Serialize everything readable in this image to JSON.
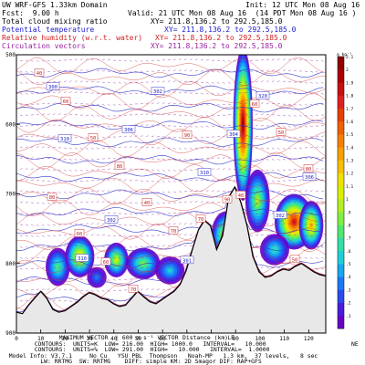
{
  "header": {
    "model_domain": "UW WRF-GFS 1.33km Domain",
    "fcst_label": "Fcst:",
    "fcst_value": "9.00 h",
    "init": "Init: 12 UTC Mon 08 Aug 16",
    "valid": "Valid: 21 UTC Mon 08 Aug 16  (14 PDT Mon 08 Aug 16 )",
    "fields": [
      {
        "name": "Total cloud mixing ratio",
        "xy": "XY= 211.8,136.2 to 292.5,185.0",
        "color": "#000000"
      },
      {
        "name": "Potential temperature",
        "xy": "XY= 211.8,136.2 to 292.5,185.0",
        "color": "#2020d0"
      },
      {
        "name": "Relative humidity (w.r.t. water)",
        "xy": "XY= 211.8,136.2 to 292.5,185.0",
        "color": "#d02020"
      },
      {
        "name": "Circulation vectors",
        "xy": "XY= 211.8,136.2 to 292.5,185.0",
        "color": "#9a20a0"
      }
    ]
  },
  "footer": {
    "lines": [
      "         MAXIMUM VECTOR  | 600 m s⁻¹ VECTOR |  Pa s⁻¹ SCALE",
      "  CONTOURS:  UNITS=K  LOW= 216.00  HIGH= 1000.0   INTERVAL=   10.000",
      "  CONTOURS:  UNITS=%  LOW= 291.00  HIGH=   10.000   INTERVAL=  1.0000",
      "  Model Info: V3.7.1     No Cu   YSU PBL  Thompson   Noah-MP   1.3 km,  37 levels,   8 sec",
      "           LW: RRTMG  SW: RRTMG    DIFF: simple KM: 2D Smagor DIF: RAP+GFS"
    ],
    "distance_label": "Distance (km)",
    "ne_label": "NE"
  },
  "colorbar": {
    "unit": "g kg⁻¹",
    "tick_labels": [
      ".1",
      ".2",
      ".3",
      ".4",
      ".5",
      ".6",
      ".7",
      ".8",
      ".9",
      "1",
      "1.1",
      "1.2",
      "1.3",
      "1.4",
      "1.5",
      "1.6",
      "1.7",
      "1.8",
      "1.9",
      "2",
      "2.1"
    ],
    "colors": [
      "#6a00c8",
      "#4a1ee0",
      "#2a4af0",
      "#1a78f8",
      "#18a8f0",
      "#20d0d8",
      "#30e0a8",
      "#50e870",
      "#80f040",
      "#b0f020",
      "#d8f000",
      "#f0e000",
      "#f8c000",
      "#f8a000",
      "#f88000",
      "#f06000",
      "#e84000",
      "#e02020",
      "#c81010",
      "#b00000",
      "#900000"
    ]
  },
  "chart_data": {
    "type": "heatmap",
    "title": "Total cloud mixing ratio",
    "xlabel": "Distance (km)",
    "ylabel": "",
    "x_ticks": [
      0,
      10,
      20,
      30,
      40,
      50,
      60,
      70,
      80,
      90,
      100,
      110,
      120
    ],
    "y_ticks": [
      500,
      600,
      700,
      800,
      900
    ],
    "xlim": [
      0,
      127
    ],
    "ylim": [
      900,
      500
    ],
    "theta_labels": [
      "300",
      "306",
      "310",
      "302",
      "310",
      "302",
      "304",
      "306",
      "302",
      "301",
      "320",
      "310"
    ],
    "rh_labels": [
      "40",
      "50",
      "40",
      "70",
      "60",
      "80",
      "60",
      "70",
      "90",
      "40",
      "50",
      "60",
      "80",
      "70",
      "90",
      "50",
      "80",
      "60"
    ],
    "cloud_cells": [
      {
        "x": 17,
        "p": 805,
        "w": 5,
        "h": 55,
        "v": 0.8
      },
      {
        "x": 26,
        "p": 790,
        "w": 6,
        "h": 60,
        "v": 1.3
      },
      {
        "x": 41,
        "p": 795,
        "w": 5,
        "h": 50,
        "v": 1.1
      },
      {
        "x": 52,
        "p": 800,
        "w": 7,
        "h": 45,
        "v": 0.9
      },
      {
        "x": 63,
        "p": 810,
        "w": 6,
        "h": 40,
        "v": 0.6
      },
      {
        "x": 86,
        "p": 760,
        "w": 6,
        "h": 70,
        "v": 1.2
      },
      {
        "x": 93,
        "p": 600,
        "w": 4,
        "h": 220,
        "v": 2.1
      },
      {
        "x": 99,
        "p": 710,
        "w": 5,
        "h": 90,
        "v": 1.0
      },
      {
        "x": 114,
        "p": 740,
        "w": 8,
        "h": 80,
        "v": 1.9
      },
      {
        "x": 121,
        "p": 745,
        "w": 5,
        "h": 70,
        "v": 1.4
      },
      {
        "x": 106,
        "p": 780,
        "w": 6,
        "h": 45,
        "v": 0.7
      },
      {
        "x": 33,
        "p": 820,
        "w": 4,
        "h": 30,
        "v": 0.4
      }
    ],
    "terrain_p": [
      870,
      872,
      860,
      850,
      840,
      850,
      866,
      870,
      868,
      862,
      856,
      848,
      842,
      845,
      850,
      852,
      858,
      862,
      860,
      850,
      840,
      848,
      855,
      858,
      852,
      846,
      840,
      830,
      810,
      780,
      752,
      738,
      746,
      780,
      760,
      705,
      690,
      712,
      745,
      790,
      812,
      820,
      818,
      812,
      808,
      810,
      804,
      800,
      806,
      812,
      816,
      818
    ]
  }
}
